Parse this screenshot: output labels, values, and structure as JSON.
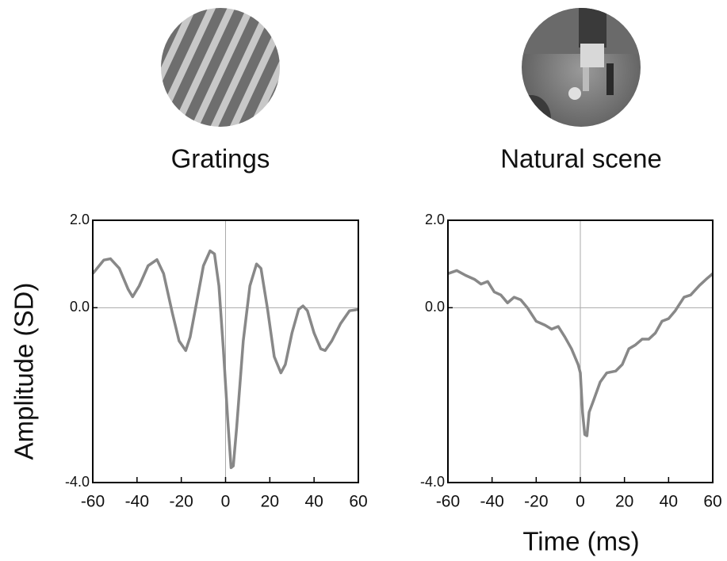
{
  "chart_data": [
    {
      "type": "line",
      "title": "Gratings",
      "ylabel": "Amplitude (SD)",
      "x": [
        -60,
        -55,
        -52,
        -48,
        -44,
        -42,
        -39,
        -35,
        -31,
        -28,
        -24,
        -21,
        -18,
        -16,
        -13,
        -10,
        -7,
        -5,
        -3,
        -1,
        1,
        2.5,
        3.5,
        5,
        8,
        11,
        14,
        16,
        19,
        22,
        25,
        27,
        30,
        33,
        35,
        37,
        40,
        43,
        45,
        48,
        52,
        56,
        60
      ],
      "series": [
        {
          "name": "Gratings",
          "color": "#888888",
          "values": [
            0.78,
            1.09,
            1.12,
            0.9,
            0.42,
            0.25,
            0.5,
            0.96,
            1.1,
            0.78,
            -0.13,
            -0.76,
            -0.98,
            -0.67,
            0.14,
            0.96,
            1.3,
            1.23,
            0.5,
            -0.94,
            -2.57,
            -3.66,
            -3.62,
            -2.75,
            -0.76,
            0.5,
            1.0,
            0.9,
            -0.04,
            -1.12,
            -1.49,
            -1.3,
            -0.58,
            -0.04,
            0.04,
            -0.07,
            -0.58,
            -0.94,
            -0.98,
            -0.76,
            -0.36,
            -0.07,
            -0.04
          ]
        }
      ],
      "xlim": [
        -60,
        60
      ],
      "xticks": [
        -60,
        -40,
        -20,
        0,
        20,
        40,
        60
      ],
      "ylim": [
        -4,
        2
      ],
      "yticks": [
        {
          "value": 2,
          "label": "2.0"
        },
        {
          "value": 0,
          "label": "0.0"
        },
        {
          "value": -4,
          "label": "-4.0"
        }
      ],
      "zero_lines": true
    },
    {
      "type": "line",
      "title": "Natural scene",
      "xlabel": "Time (ms)",
      "x": [
        -60,
        -56,
        -52,
        -48,
        -45,
        -42,
        -39,
        -36,
        -33,
        -30,
        -27,
        -24,
        -20,
        -16,
        -13,
        -10,
        -7,
        -4,
        -1,
        0,
        1,
        2,
        3,
        4,
        6,
        9,
        12,
        16,
        19,
        22,
        25,
        28,
        31,
        34,
        37,
        40,
        43,
        47,
        50,
        54,
        57,
        60
      ],
      "series": [
        {
          "name": "Natural scene",
          "color": "#888888",
          "values": [
            0.78,
            0.85,
            0.74,
            0.65,
            0.54,
            0.6,
            0.36,
            0.29,
            0.11,
            0.24,
            0.18,
            0.0,
            -0.31,
            -0.4,
            -0.49,
            -0.43,
            -0.67,
            -0.94,
            -1.3,
            -1.49,
            -2.39,
            -2.9,
            -2.93,
            -2.39,
            -2.12,
            -1.7,
            -1.49,
            -1.45,
            -1.3,
            -0.94,
            -0.85,
            -0.72,
            -0.72,
            -0.58,
            -0.31,
            -0.25,
            -0.07,
            0.24,
            0.29,
            0.51,
            0.65,
            0.78
          ]
        }
      ],
      "xlim": [
        -60,
        60
      ],
      "xticks": [
        -60,
        -40,
        -20,
        0,
        20,
        40,
        60
      ],
      "ylim": [
        -4,
        2
      ],
      "yticks": [
        {
          "value": 2,
          "label": "2.0"
        },
        {
          "value": 0,
          "label": "0.0"
        },
        {
          "value": -4,
          "label": "-4.0"
        }
      ],
      "zero_lines": true
    }
  ]
}
